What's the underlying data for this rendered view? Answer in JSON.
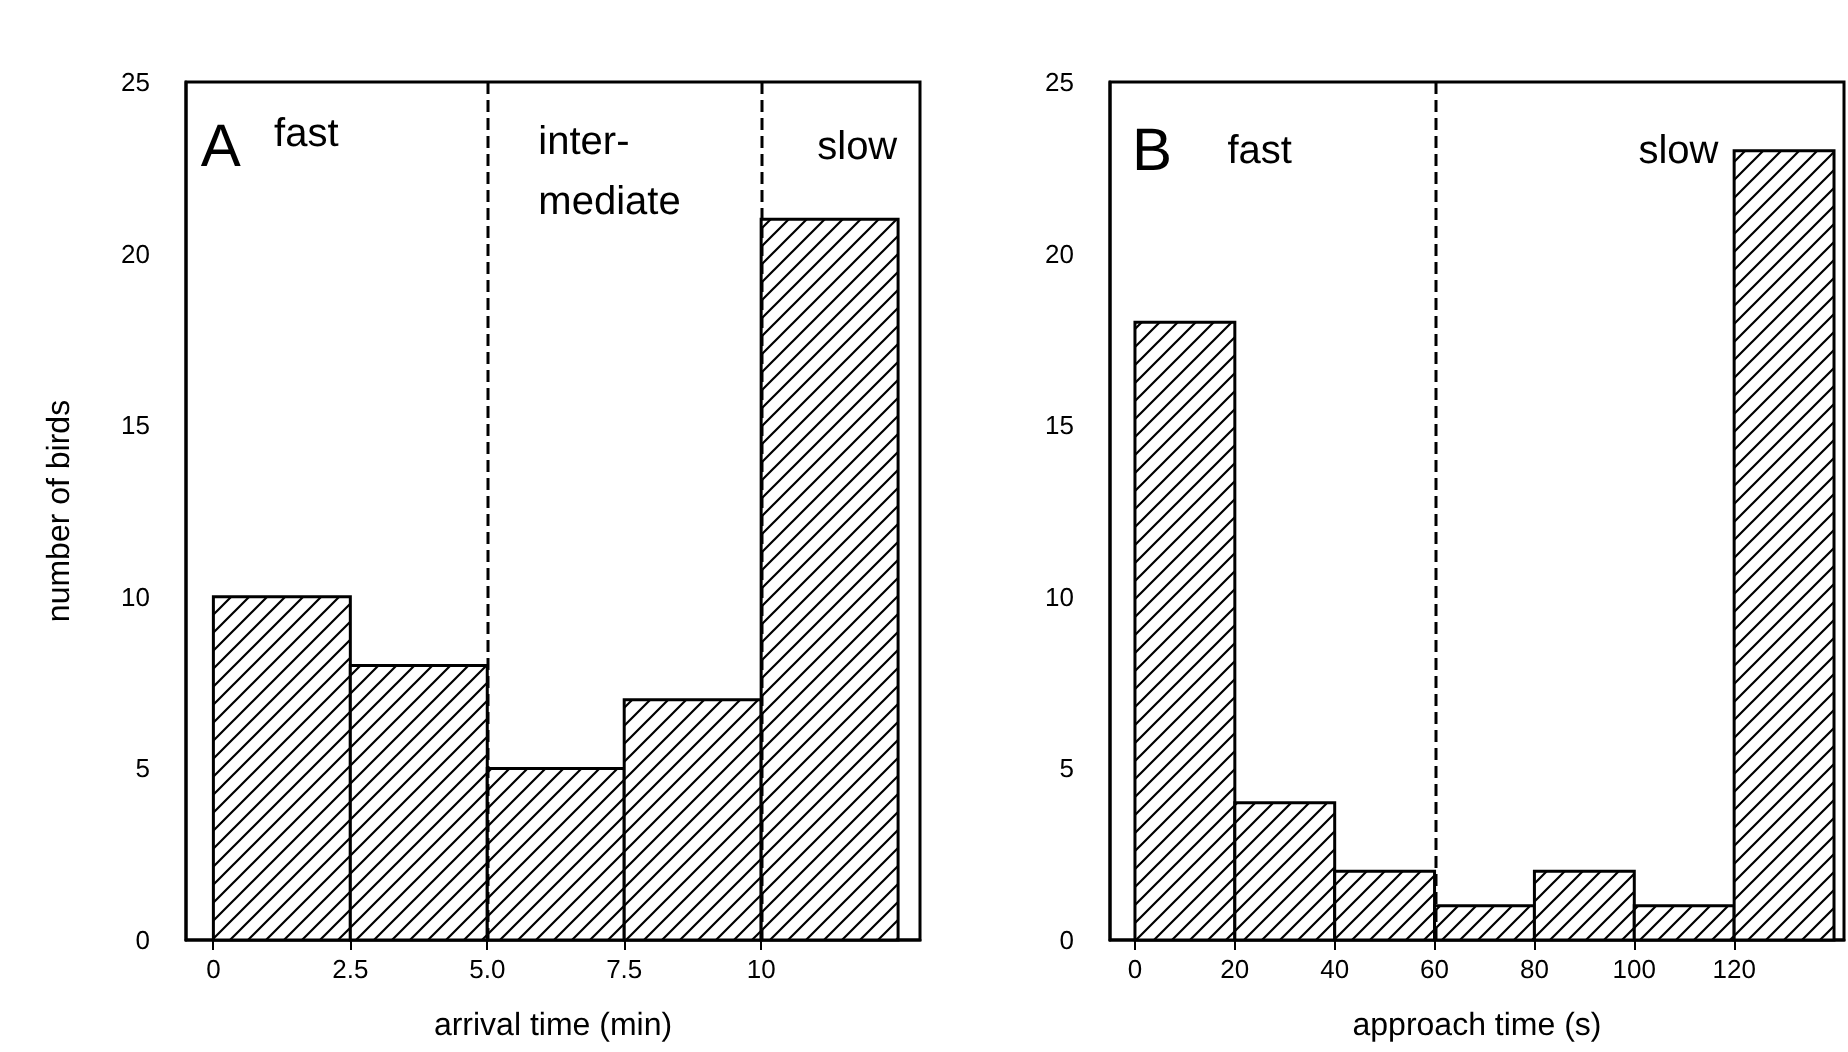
{
  "chart_data": [
    {
      "type": "histogram",
      "bins": [
        0,
        2.5,
        5,
        7.5,
        10,
        12.5
      ],
      "values": [
        10,
        8,
        5,
        7,
        21
      ],
      "xlabel": "arrival time (min)",
      "ylabel": "number of birds",
      "xlim": [
        -0.5,
        12.9
      ],
      "xticks": [
        0,
        2.5,
        {
          "value": 5,
          "label": "5.0"
        },
        7.5,
        10
      ],
      "ylim": [
        0,
        25
      ],
      "yticks": [
        0,
        5,
        10,
        15,
        20,
        25
      ],
      "grid": false,
      "ref_lines": [
        {
          "axis": "x",
          "value": 5,
          "line_style": "dashed"
        },
        {
          "axis": "x",
          "value": 10,
          "line_style": "dashed"
        }
      ],
      "annotations": [
        "A",
        "fast",
        "inter-\nmediate",
        "slow"
      ]
    },
    {
      "type": "histogram",
      "bins": [
        0,
        20,
        40,
        60,
        80,
        100,
        120,
        140
      ],
      "values": [
        18,
        4,
        2,
        1,
        2,
        1,
        23
      ],
      "xlabel": "approach time (s)",
      "xlim": [
        -5,
        142
      ],
      "xticks": [
        0,
        20,
        40,
        60,
        80,
        100,
        120
      ],
      "ylim": [
        0,
        25
      ],
      "yticks": [
        0,
        5,
        10,
        15,
        20,
        25
      ],
      "grid": false,
      "ref_lines": [
        {
          "axis": "x",
          "value": 60,
          "line_style": "dashed"
        }
      ],
      "annotations": [
        "B",
        "fast",
        "slow"
      ]
    }
  ]
}
